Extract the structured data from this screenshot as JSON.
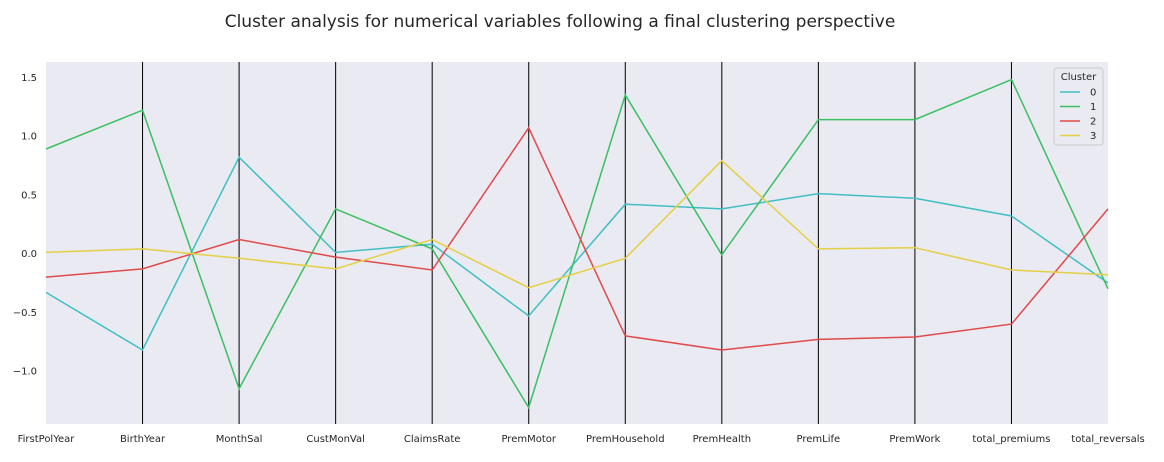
{
  "chart_data": {
    "type": "line",
    "title": "Cluster analysis for numerical variables following a final clustering perspective",
    "categories": [
      "FirstPolYear",
      "BirthYear",
      "MonthSal",
      "CustMonVal",
      "ClaimsRate",
      "PremMotor",
      "PremHousehold",
      "PremHealth",
      "PremLife",
      "PremWork",
      "total_premiums",
      "total_reversals"
    ],
    "ylim": [
      -1.45,
      1.63
    ],
    "yticks": [
      1.5,
      1.0,
      0.5,
      0.0,
      -0.5,
      -1.0
    ],
    "ytick_labels": [
      "1.5",
      "1.0",
      "0.5",
      "0.0",
      "−0.5",
      "−1.0"
    ],
    "grid": false,
    "legend_placement": "top-right",
    "legend_title": "Cluster",
    "series": [
      {
        "name": "0",
        "color": "#3fbfc4",
        "values": [
          -0.33,
          -0.82,
          0.82,
          0.01,
          0.08,
          -0.53,
          0.42,
          0.38,
          0.51,
          0.47,
          0.32,
          -0.25
        ]
      },
      {
        "name": "1",
        "color": "#3bbf62",
        "values": [
          0.89,
          1.22,
          -1.15,
          0.38,
          0.04,
          -1.31,
          1.35,
          -0.01,
          1.14,
          1.14,
          1.48,
          -0.3
        ]
      },
      {
        "name": "2",
        "color": "#e04a4a",
        "values": [
          -0.2,
          -0.13,
          0.12,
          -0.03,
          -0.14,
          1.07,
          -0.7,
          -0.82,
          -0.73,
          -0.71,
          -0.6,
          0.38
        ]
      },
      {
        "name": "3",
        "color": "#e3d044",
        "values": [
          0.01,
          0.04,
          -0.04,
          -0.13,
          0.12,
          -0.29,
          -0.04,
          0.79,
          0.04,
          0.05,
          -0.14,
          -0.18
        ]
      }
    ]
  }
}
